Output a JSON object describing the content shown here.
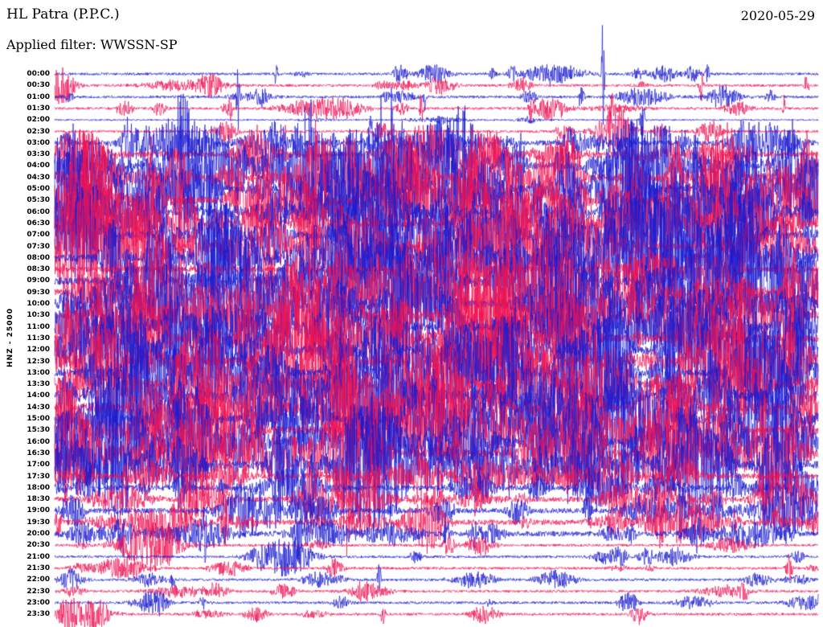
{
  "header": {
    "station_title": "HL Patra (P.P.C.)",
    "filter_label": "Applied filter: WWSSN-SP",
    "date": "2020-05-29",
    "channel_label": "HNZ - 25000"
  },
  "colors": {
    "trace_blue": "#1b1bd0",
    "trace_red": "#ee1353",
    "background": "#ffffff",
    "text": "#000000"
  },
  "chart_data": {
    "type": "line",
    "title": "HL Patra (P.P.C.) helicorder, 2020-05-29, filter WWSSN-SP",
    "ylabel": "HNZ - 25000",
    "segment_duration_minutes": 30,
    "segments_per_day": 48,
    "description": "24-hour drum-style seismogram: 48 half-hour traces stacked top to bottom, colors alternating blue/red. Continuous high-frequency seismic noise with frequent event bursts; activity level 0=quiet 1=light 2=high 3=extreme (bursts overlap neighbouring traces between about 03:00 and 20:00).",
    "rows": [
      {
        "time": "00:00",
        "color": "blue",
        "activity": 1,
        "spikes": [
          {
            "x": 0.718,
            "a": 68
          },
          {
            "x": 0.29,
            "a": 18
          },
          {
            "x": 0.855,
            "a": 14
          }
        ]
      },
      {
        "time": "00:30",
        "color": "red",
        "activity": 1,
        "spikes": [
          {
            "x": 0.847,
            "a": 22
          },
          {
            "x": 0.985,
            "a": 16
          }
        ]
      },
      {
        "time": "01:00",
        "color": "blue",
        "activity": 1,
        "spikes": [
          {
            "x": 0.24,
            "a": 40
          },
          {
            "x": 0.485,
            "a": 18
          },
          {
            "x": 0.69,
            "a": 22
          }
        ]
      },
      {
        "time": "01:30",
        "color": "red",
        "activity": 1,
        "spikes": [
          {
            "x": 0.23,
            "a": 18
          },
          {
            "x": 0.48,
            "a": 26
          },
          {
            "x": 0.625,
            "a": 22
          },
          {
            "x": 0.73,
            "a": 18
          },
          {
            "x": 0.955,
            "a": 18
          }
        ]
      },
      {
        "time": "02:00",
        "color": "blue",
        "activity": 0,
        "spikes": [
          {
            "x": 0.77,
            "a": 30
          }
        ]
      },
      {
        "time": "02:30",
        "color": "red",
        "activity": 1,
        "spikes": [
          {
            "x": 0.3,
            "a": 16
          },
          {
            "x": 0.42,
            "a": 14
          }
        ]
      },
      {
        "time": "03:00",
        "color": "blue",
        "activity": 2
      },
      {
        "time": "03:30",
        "color": "red",
        "activity": 2
      },
      {
        "time": "04:00",
        "color": "blue",
        "activity": 3
      },
      {
        "time": "04:30",
        "color": "red",
        "activity": 3
      },
      {
        "time": "05:00",
        "color": "blue",
        "activity": 3
      },
      {
        "time": "05:30",
        "color": "red",
        "activity": 3
      },
      {
        "time": "06:00",
        "color": "blue",
        "activity": 3
      },
      {
        "time": "06:30",
        "color": "red",
        "activity": 3
      },
      {
        "time": "07:00",
        "color": "blue",
        "activity": 3
      },
      {
        "time": "07:30",
        "color": "red",
        "activity": 3
      },
      {
        "time": "08:00",
        "color": "blue",
        "activity": 3
      },
      {
        "time": "08:30",
        "color": "red",
        "activity": 2
      },
      {
        "time": "09:00",
        "color": "blue",
        "activity": 3
      },
      {
        "time": "09:30",
        "color": "red",
        "activity": 3
      },
      {
        "time": "10:00",
        "color": "blue",
        "activity": 3
      },
      {
        "time": "10:30",
        "color": "red",
        "activity": 3
      },
      {
        "time": "11:00",
        "color": "blue",
        "activity": 3
      },
      {
        "time": "11:30",
        "color": "red",
        "activity": 3
      },
      {
        "time": "12:00",
        "color": "blue",
        "activity": 3
      },
      {
        "time": "12:30",
        "color": "red",
        "activity": 3
      },
      {
        "time": "13:00",
        "color": "blue",
        "activity": 3
      },
      {
        "time": "13:30",
        "color": "red",
        "activity": 3
      },
      {
        "time": "14:00",
        "color": "blue",
        "activity": 3
      },
      {
        "time": "14:30",
        "color": "red",
        "activity": 3
      },
      {
        "time": "15:00",
        "color": "blue",
        "activity": 3
      },
      {
        "time": "15:30",
        "color": "red",
        "activity": 3
      },
      {
        "time": "16:00",
        "color": "blue",
        "activity": 3
      },
      {
        "time": "16:30",
        "color": "red",
        "activity": 3
      },
      {
        "time": "17:00",
        "color": "blue",
        "activity": 3
      },
      {
        "time": "17:30",
        "color": "red",
        "activity": 2
      },
      {
        "time": "18:00",
        "color": "blue",
        "activity": 2
      },
      {
        "time": "18:30",
        "color": "red",
        "activity": 2
      },
      {
        "time": "19:00",
        "color": "blue",
        "activity": 2
      },
      {
        "time": "19:30",
        "color": "red",
        "activity": 2
      },
      {
        "time": "20:00",
        "color": "blue",
        "activity": 2
      },
      {
        "time": "20:30",
        "color": "red",
        "activity": 1,
        "spikes": [
          {
            "x": 0.15,
            "a": 16
          }
        ]
      },
      {
        "time": "21:00",
        "color": "blue",
        "activity": 1
      },
      {
        "time": "21:30",
        "color": "red",
        "activity": 1,
        "spikes": [
          {
            "x": 0.105,
            "a": 20
          }
        ]
      },
      {
        "time": "22:00",
        "color": "blue",
        "activity": 1,
        "spikes": [
          {
            "x": 0.425,
            "a": 26
          },
          {
            "x": 0.155,
            "a": 18
          }
        ]
      },
      {
        "time": "22:30",
        "color": "red",
        "activity": 1
      },
      {
        "time": "23:00",
        "color": "blue",
        "activity": 1
      },
      {
        "time": "23:30",
        "color": "red",
        "activity": 1,
        "spikes": [
          {
            "x": 0.43,
            "a": 14
          }
        ]
      }
    ]
  }
}
